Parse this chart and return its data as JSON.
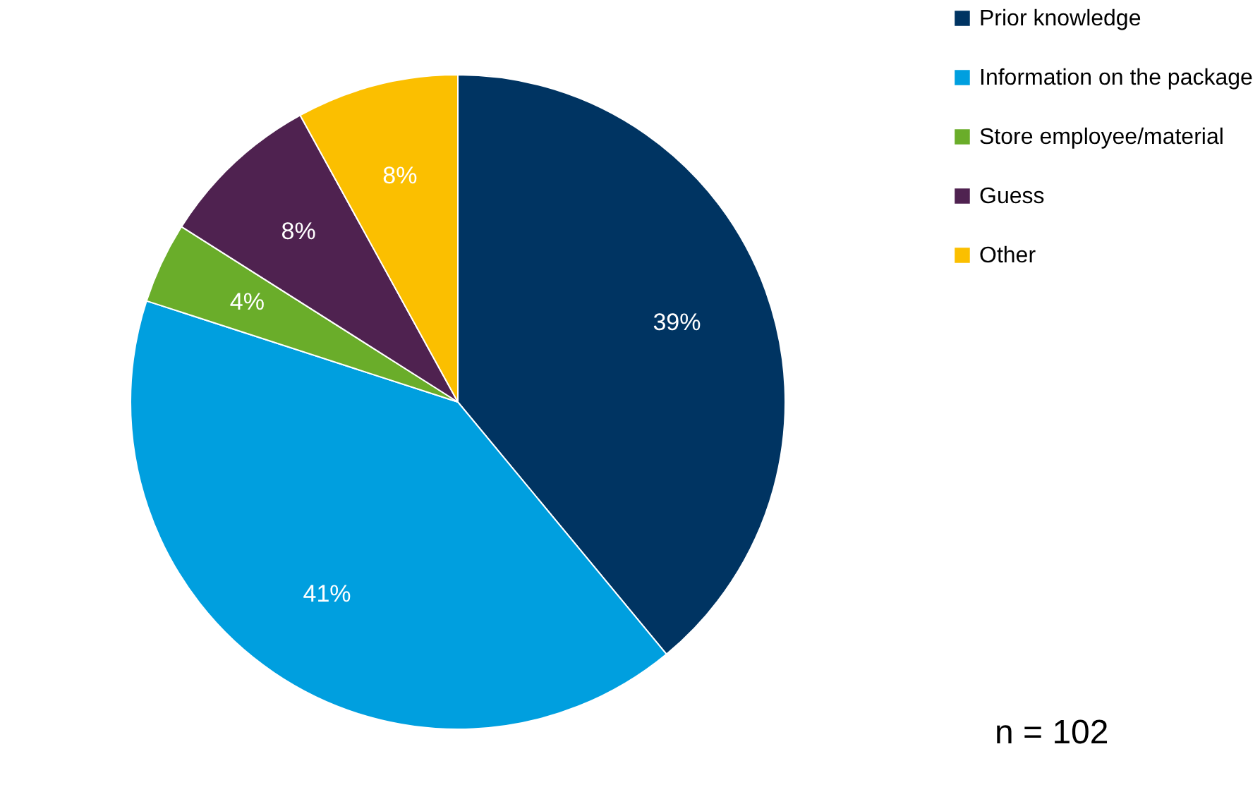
{
  "chart_data": {
    "type": "pie",
    "categories": [
      "Prior knowledge",
      "Information on the package",
      "Store employee/material",
      "Guess",
      "Other"
    ],
    "values": [
      39,
      41,
      4,
      8,
      8
    ],
    "colors": [
      "#003462",
      "#009fdf",
      "#6aad2a",
      "#4f2250",
      "#fbbf00"
    ],
    "value_labels": [
      "39%",
      "41%",
      "4%",
      "8%",
      "8%"
    ],
    "legend": "right",
    "annotations": [
      {
        "text": "n = 102"
      }
    ]
  }
}
